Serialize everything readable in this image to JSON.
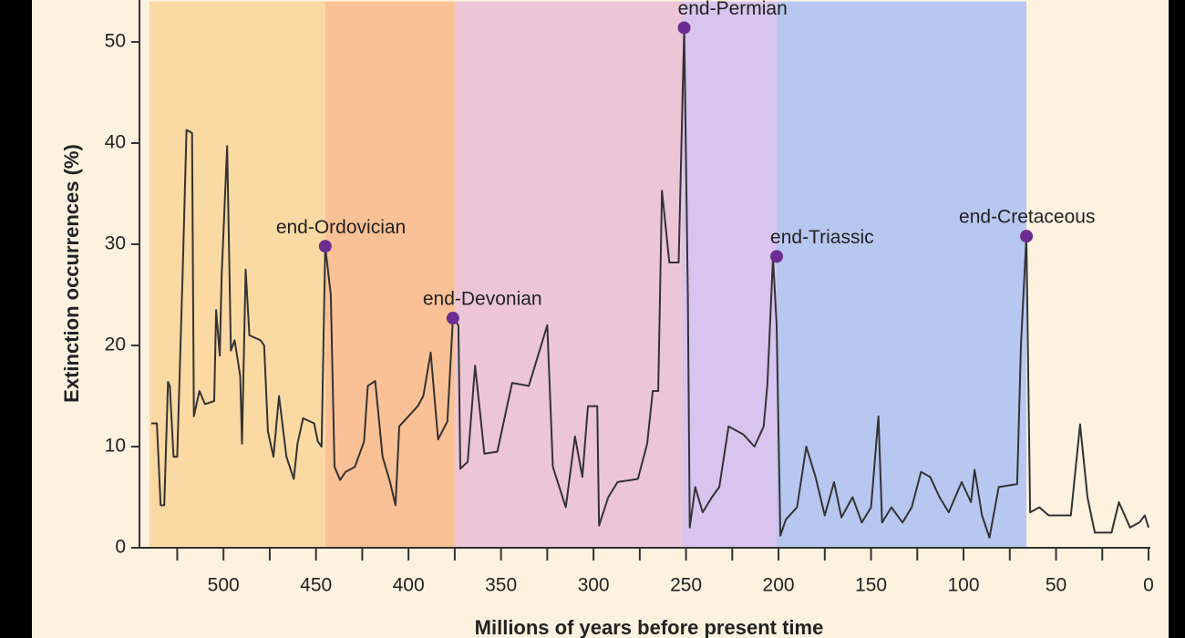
{
  "chart_data": {
    "type": "line",
    "xlabel": "Millions of years before present time",
    "ylabel": "Extinction occurrences (%)",
    "xlim": [
      540,
      0
    ],
    "ylim": [
      0,
      54
    ],
    "xticks": [
      500,
      450,
      400,
      350,
      300,
      250,
      200,
      150,
      100,
      50,
      0
    ],
    "xminorticks": [
      525,
      475,
      425,
      375,
      325,
      275,
      225,
      175,
      125,
      75,
      25
    ],
    "yticks": [
      0,
      10,
      20,
      30,
      40,
      50
    ],
    "background": "#fdf2df",
    "bands": [
      {
        "from": 540,
        "to": 445,
        "color": "#fbd9a3"
      },
      {
        "from": 445,
        "to": 375,
        "color": "#fbc196"
      },
      {
        "from": 375,
        "to": 252,
        "color": "#ecc6d6"
      },
      {
        "from": 252,
        "to": 201,
        "color": "#d8c4ee"
      },
      {
        "from": 201,
        "to": 66,
        "color": "#b8c7f0"
      }
    ],
    "series": [
      {
        "color": "#333333",
        "x": [
          539,
          536,
          534,
          532,
          530,
          529,
          527,
          525,
          522,
          520,
          517,
          516,
          513,
          510,
          505,
          504,
          502,
          501,
          498,
          496,
          494,
          491,
          490,
          488,
          486,
          480,
          478,
          476,
          473,
          470,
          466,
          462,
          460,
          457,
          451,
          449,
          447,
          445,
          442,
          440,
          437,
          434,
          429,
          424,
          422,
          418,
          414,
          410,
          407,
          405,
          395,
          392,
          388,
          384,
          379,
          376,
          373,
          372,
          368,
          364,
          359,
          352,
          344,
          335,
          325,
          322,
          315,
          310,
          306,
          303,
          298,
          297,
          292,
          287,
          276,
          271,
          268,
          265,
          263,
          259,
          254,
          251,
          249,
          248,
          245,
          241,
          236,
          232,
          227,
          219,
          213,
          208,
          206,
          203,
          201,
          199,
          196,
          190,
          185,
          180,
          175,
          170,
          166,
          160,
          155,
          150,
          146,
          144,
          139,
          133,
          128,
          123,
          118,
          113,
          108,
          101,
          96,
          94,
          90,
          86,
          81,
          71,
          69,
          66,
          64,
          59,
          54,
          42,
          37,
          33,
          29,
          20,
          16,
          10,
          5,
          2,
          0
        ],
        "values": [
          12.3,
          12.3,
          4.2,
          4.2,
          16.4,
          16,
          9,
          9,
          27.5,
          41.3,
          41,
          13,
          15.5,
          14.2,
          14.5,
          23.5,
          19,
          27,
          39.7,
          19.5,
          20.5,
          17,
          10.3,
          27.5,
          21,
          20.5,
          20,
          11.5,
          9,
          15,
          9,
          6.8,
          10.3,
          12.8,
          12.3,
          10.5,
          10,
          29.8,
          25,
          8,
          6.7,
          7.5,
          8,
          10.5,
          16,
          16.5,
          9,
          6.5,
          4.2,
          12,
          14,
          15,
          19.3,
          10.7,
          12.5,
          22.7,
          22,
          7.8,
          8.5,
          18,
          9.3,
          9.5,
          16.3,
          16,
          22,
          8,
          4,
          11,
          7,
          14,
          14,
          2.2,
          5,
          6.5,
          6.8,
          10.3,
          15.5,
          15.5,
          35.3,
          28.2,
          28.2,
          51.4,
          25,
          2,
          6,
          3.5,
          5,
          6,
          12,
          11.2,
          10,
          12,
          16.2,
          28.7,
          22,
          1.2,
          2.8,
          4,
          10,
          7,
          3.2,
          6.5,
          3,
          5,
          2.5,
          4,
          13,
          2.5,
          4,
          2.5,
          4,
          7.5,
          7,
          5,
          3.5,
          6.5,
          4.5,
          7.7,
          3.2,
          1,
          6,
          6.3,
          20,
          30.8,
          3.5,
          4,
          3.2,
          3.2,
          12.2,
          5,
          1.5,
          1.5,
          4.5,
          2,
          2.5,
          3.2,
          2
        ]
      }
    ],
    "annotations": [
      {
        "text": "end-Ordovician",
        "x": 445,
        "y": 29.8
      },
      {
        "text": "end-Devonian",
        "x": 376,
        "y": 22.7
      },
      {
        "text": "end-Permian",
        "x": 251,
        "y": 51.4
      },
      {
        "text": "end-Triassic",
        "x": 201,
        "y": 28.8
      },
      {
        "text": "end-Cretaceous",
        "x": 66,
        "y": 30.8
      }
    ],
    "marker_color": "#6b2d91"
  }
}
